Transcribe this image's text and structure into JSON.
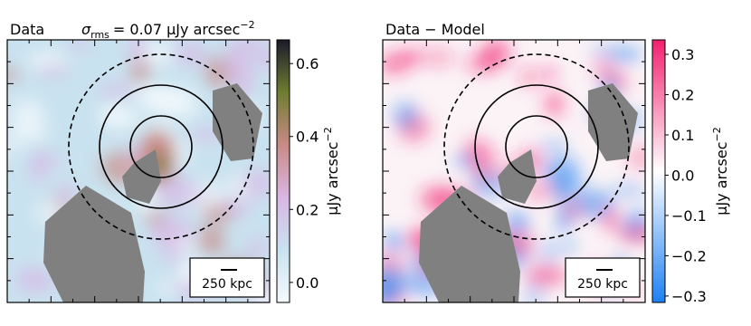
{
  "chart_data": [
    {
      "type": "image",
      "title": "Data",
      "noise_label": {
        "symbol": "σ",
        "subscript": "rms",
        "text": "= 0.07 μJy arcsec",
        "superscript": "−2"
      },
      "colorbar": {
        "label": "μJy arcsec",
        "label_superscript": "−2",
        "clim": [
          -0.055,
          0.665
        ],
        "ticks": [
          {
            "value": 0,
            "label": "0.0"
          },
          0.2,
          0.4,
          0.6
        ],
        "colors": [
          "#f4fafc",
          "#c9e2ef",
          "#d9b6e4",
          "#c98a86",
          "#6e7d30",
          "#1b1a2b"
        ]
      },
      "scalebar_label": "250 kpc"
    },
    {
      "type": "image",
      "title": "Data − Model",
      "colorbar": {
        "label": "μJy arcsec",
        "label_superscript": "−2",
        "clim": [
          -0.316,
          0.336
        ],
        "ticks": [
          {
            "value": -0.3,
            "label": "−0.3"
          },
          {
            "value": -0.2,
            "label": "−0.2"
          },
          {
            "value": -0.1,
            "label": "−0.1"
          },
          {
            "value": 0,
            "label": "0.0"
          },
          0.1,
          0.2,
          0.3
        ],
        "colors": [
          "#1e80f2",
          "#ffffff",
          "#f2206f"
        ]
      },
      "scalebar_label": "250 kpc"
    }
  ]
}
